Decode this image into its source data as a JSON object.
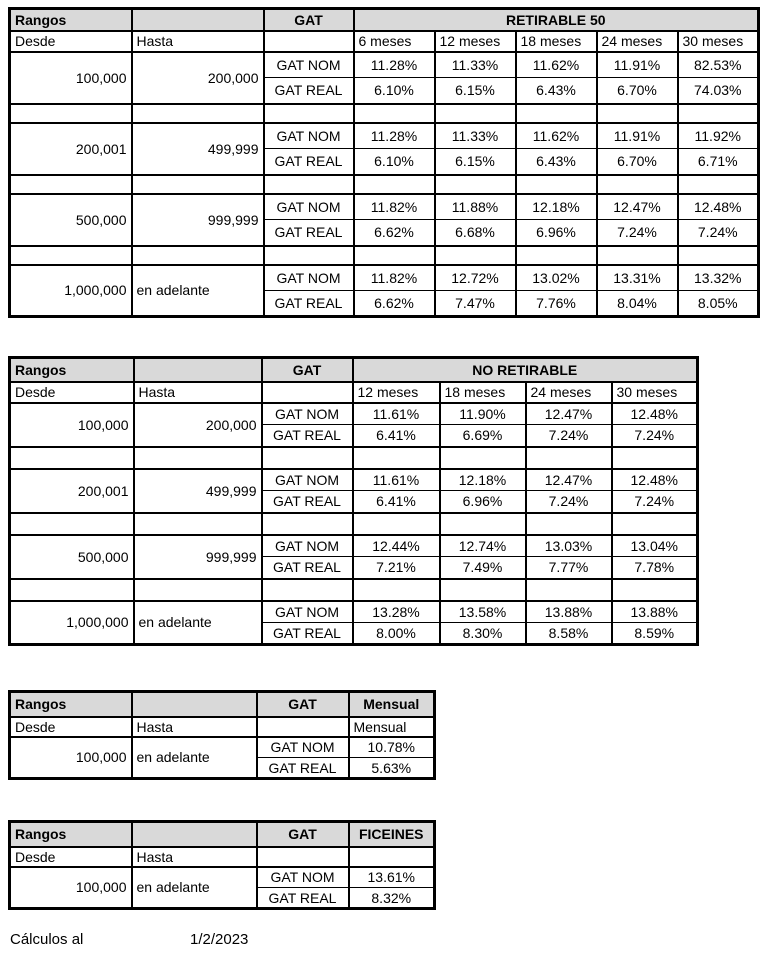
{
  "labels": {
    "rangos": "Rangos",
    "gat": "GAT",
    "desde": "Desde",
    "hasta": "Hasta",
    "gat_nom": "GAT NOM",
    "gat_real": "GAT REAL"
  },
  "colors": {
    "header_fill": "#d9d9d9",
    "border": "#000000",
    "background": "#ffffff"
  },
  "tables": [
    {
      "id": "retirable50",
      "title": "RETIRABLE 50",
      "months": [
        "6 meses",
        "12 meses",
        "18 meses",
        "24 meses",
        "30 meses"
      ],
      "rows": [
        {
          "desde": "100,000",
          "hasta": "200,000",
          "gat_nom": [
            "11.28%",
            "11.33%",
            "11.62%",
            "11.91%",
            "82.53%"
          ],
          "gat_real": [
            "6.10%",
            "6.15%",
            "6.43%",
            "6.70%",
            "74.03%"
          ]
        },
        {
          "desde": "200,001",
          "hasta": "499,999",
          "gat_nom": [
            "11.28%",
            "11.33%",
            "11.62%",
            "11.91%",
            "11.92%"
          ],
          "gat_real": [
            "6.10%",
            "6.15%",
            "6.43%",
            "6.70%",
            "6.71%"
          ]
        },
        {
          "desde": "500,000",
          "hasta": "999,999",
          "gat_nom": [
            "11.82%",
            "11.88%",
            "12.18%",
            "12.47%",
            "12.48%"
          ],
          "gat_real": [
            "6.62%",
            "6.68%",
            "6.96%",
            "7.24%",
            "7.24%"
          ]
        },
        {
          "desde": "1,000,000",
          "hasta": "en adelante",
          "gat_nom": [
            "11.82%",
            "12.72%",
            "13.02%",
            "13.31%",
            "13.32%"
          ],
          "gat_real": [
            "6.62%",
            "7.47%",
            "7.76%",
            "8.04%",
            "8.05%"
          ]
        }
      ]
    },
    {
      "id": "no_retirable",
      "title": "NO RETIRABLE",
      "months": [
        "12 meses",
        "18 meses",
        "24 meses",
        "30 meses"
      ],
      "rows": [
        {
          "desde": "100,000",
          "hasta": "200,000",
          "gat_nom": [
            "11.61%",
            "11.90%",
            "12.47%",
            "12.48%"
          ],
          "gat_real": [
            "6.41%",
            "6.69%",
            "7.24%",
            "7.24%"
          ]
        },
        {
          "desde": "200,001",
          "hasta": "499,999",
          "gat_nom": [
            "11.61%",
            "12.18%",
            "12.47%",
            "12.48%"
          ],
          "gat_real": [
            "6.41%",
            "6.96%",
            "7.24%",
            "7.24%"
          ]
        },
        {
          "desde": "500,000",
          "hasta": "999,999",
          "gat_nom": [
            "12.44%",
            "12.74%",
            "13.03%",
            "13.04%"
          ],
          "gat_real": [
            "7.21%",
            "7.49%",
            "7.77%",
            "7.78%"
          ]
        },
        {
          "desde": "1,000,000",
          "hasta": "en adelante",
          "gat_nom": [
            "13.28%",
            "13.58%",
            "13.88%",
            "13.88%"
          ],
          "gat_real": [
            "8.00%",
            "8.30%",
            "8.58%",
            "8.59%"
          ]
        }
      ]
    },
    {
      "id": "mensual",
      "title": "Mensual",
      "months": [
        "Mensual"
      ],
      "rows": [
        {
          "desde": "100,000",
          "hasta": "en adelante",
          "gat_nom": [
            "10.78%"
          ],
          "gat_real": [
            "5.63%"
          ]
        }
      ]
    },
    {
      "id": "ficeines",
      "title": "FICEINES",
      "months": [
        ""
      ],
      "rows": [
        {
          "desde": "100,000",
          "hasta": "en adelante",
          "gat_nom": [
            "13.61%"
          ],
          "gat_real": [
            "8.32%"
          ]
        }
      ]
    }
  ],
  "footer": {
    "label": "Cálculos al",
    "date": "1/2/2023"
  }
}
